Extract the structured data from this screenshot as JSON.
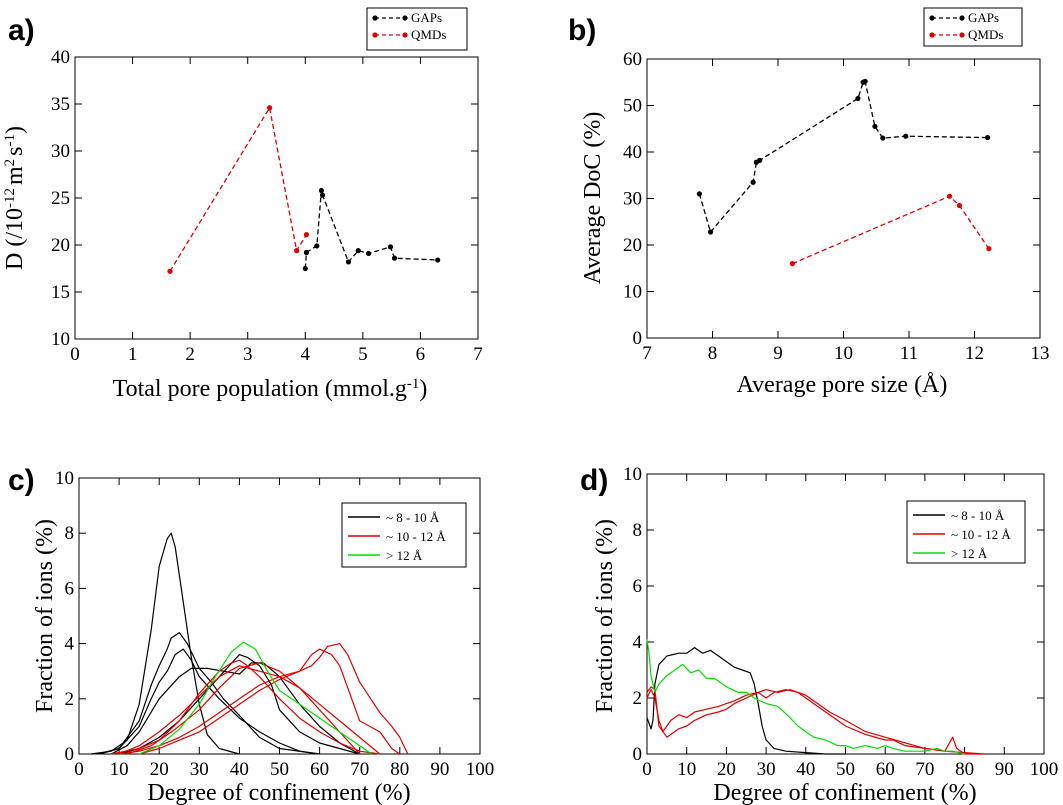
{
  "chart_data": [
    {
      "panel": "a)",
      "type": "line",
      "xlabel": "Total pore population (mmol.g",
      "xlabel_sup": "-1",
      "xlabel_end": ")",
      "ylabel_parts": [
        "D (/10",
        "-12",
        "m",
        "2",
        "s",
        "-1",
        ")"
      ],
      "xlim": [
        0,
        7
      ],
      "ylim": [
        10,
        40
      ],
      "xticks": [
        0,
        1,
        2,
        3,
        4,
        5,
        6,
        7
      ],
      "yticks": [
        10,
        15,
        20,
        25,
        30,
        35,
        40
      ],
      "legend_position": "top-right",
      "series": [
        {
          "name": "GAPs",
          "color": "#000000",
          "style": "dashed-markers",
          "x": [
            4.0,
            4.02,
            4.2,
            4.28,
            4.3,
            4.75,
            4.92,
            5.1,
            5.48,
            5.55,
            6.3
          ],
          "y": [
            17.5,
            19.2,
            19.9,
            25.8,
            25.3,
            18.2,
            19.4,
            19.1,
            19.8,
            18.6,
            18.4
          ]
        },
        {
          "name": "QMDs",
          "color": "#e00000",
          "style": "dashed-markers",
          "x": [
            1.65,
            3.38,
            3.85,
            4.02
          ],
          "y": [
            17.2,
            34.6,
            19.4,
            21.1
          ]
        }
      ]
    },
    {
      "panel": "b)",
      "type": "line",
      "xlabel": "Average pore size (Å)",
      "ylabel": "Average DoC (%)",
      "xlim": [
        7,
        13
      ],
      "ylim": [
        0,
        60
      ],
      "xticks": [
        7,
        8,
        9,
        10,
        11,
        12,
        13
      ],
      "yticks": [
        0,
        10,
        20,
        30,
        40,
        50,
        60
      ],
      "legend_position": "top-right",
      "series": [
        {
          "name": "GAPs",
          "color": "#000000",
          "style": "dashed-markers",
          "x": [
            7.8,
            7.97,
            8.62,
            8.67,
            8.72,
            10.22,
            10.3,
            10.33,
            10.48,
            10.6,
            10.95,
            12.2
          ],
          "y": [
            31.0,
            22.8,
            33.5,
            37.8,
            38.2,
            51.5,
            55.0,
            55.2,
            45.5,
            43.0,
            43.4,
            43.1
          ]
        },
        {
          "name": "QMDs",
          "color": "#e00000",
          "style": "dashed-markers",
          "x": [
            9.22,
            11.62,
            11.77,
            12.22
          ],
          "y": [
            16.0,
            30.5,
            28.5,
            19.2
          ]
        }
      ]
    },
    {
      "panel": "c)",
      "type": "line",
      "xlabel": "Degree of confinement (%)",
      "ylabel": "Fraction of ions (%)",
      "xlim": [
        0,
        100
      ],
      "ylim": [
        0,
        10
      ],
      "xticks": [
        0,
        10,
        20,
        30,
        40,
        50,
        60,
        70,
        80,
        90,
        100
      ],
      "yticks": [
        0,
        2,
        4,
        6,
        8,
        10
      ],
      "legend_position": "top-right",
      "legend": [
        {
          "label": "~ 8 - 10 Å",
          "color": "#000000"
        },
        {
          "label": "~ 10 - 12 Å",
          "color": "#e00000"
        },
        {
          "label": "> 12 Å",
          "color": "#00dd00"
        }
      ],
      "series": [
        {
          "group": 0,
          "color": "#000000",
          "x": [
            3,
            8,
            12,
            15,
            18,
            20,
            22,
            23,
            24,
            26,
            28,
            30,
            32,
            35,
            40
          ],
          "y": [
            0,
            0.1,
            0.5,
            1.8,
            4.5,
            6.8,
            7.8,
            8.0,
            7.5,
            5.5,
            3.5,
            1.8,
            0.7,
            0.2,
            0
          ]
        },
        {
          "group": 0,
          "color": "#000000",
          "x": [
            5,
            10,
            15,
            18,
            20,
            22,
            23,
            25,
            27,
            30,
            33,
            36,
            40,
            45,
            50,
            60
          ],
          "y": [
            0,
            0.2,
            1.2,
            2.5,
            3.2,
            3.8,
            4.2,
            4.4,
            4.0,
            3.1,
            2.6,
            2.0,
            1.4,
            0.6,
            0.2,
            0
          ]
        },
        {
          "group": 0,
          "color": "#000000",
          "x": [
            5,
            10,
            15,
            18,
            20,
            22,
            24,
            26,
            28,
            30,
            35,
            40,
            45,
            50,
            55,
            60
          ],
          "y": [
            0,
            0.2,
            1.0,
            2.0,
            2.6,
            3.0,
            3.6,
            3.8,
            3.4,
            2.8,
            2.0,
            1.3,
            0.8,
            0.4,
            0.1,
            0
          ]
        },
        {
          "group": 0,
          "color": "#000000",
          "x": [
            8,
            12,
            15,
            20,
            25,
            28,
            32,
            36,
            40,
            43,
            46,
            50,
            55,
            60,
            65,
            70
          ],
          "y": [
            0,
            0.3,
            0.8,
            2.0,
            2.8,
            3.1,
            3.1,
            3.0,
            2.9,
            3.3,
            3.3,
            2.8,
            1.8,
            1.0,
            0.4,
            0
          ]
        },
        {
          "group": 0,
          "color": "#000000",
          "x": [
            10,
            15,
            20,
            25,
            30,
            35,
            40,
            42,
            45,
            48,
            50,
            55,
            60,
            65,
            70
          ],
          "y": [
            0,
            0.2,
            0.6,
            1.2,
            2.0,
            2.8,
            3.6,
            3.5,
            3.2,
            2.5,
            1.6,
            0.8,
            0.4,
            0.2,
            0
          ]
        },
        {
          "group": 1,
          "color": "#e00000",
          "x": [
            8,
            15,
            20,
            25,
            30,
            35,
            38,
            40,
            42,
            45,
            50,
            55,
            60,
            65,
            70,
            75
          ],
          "y": [
            0,
            0.2,
            0.5,
            1.2,
            2.2,
            3.0,
            3.3,
            3.4,
            3.2,
            2.8,
            2.0,
            1.3,
            0.8,
            0.4,
            0.1,
            0
          ]
        },
        {
          "group": 1,
          "color": "#e00000",
          "x": [
            10,
            15,
            20,
            25,
            30,
            35,
            40,
            45,
            50,
            55,
            58,
            60,
            63,
            65,
            68,
            70,
            75,
            78,
            80
          ],
          "y": [
            0,
            0.1,
            0.3,
            0.6,
            1.0,
            1.5,
            2.0,
            2.5,
            2.8,
            3.0,
            3.6,
            3.8,
            3.6,
            3.2,
            2.0,
            1.2,
            0.8,
            0.2,
            0
          ]
        },
        {
          "group": 1,
          "color": "#e00000",
          "x": [
            15,
            20,
            25,
            30,
            35,
            40,
            45,
            50,
            55,
            58,
            60,
            62,
            65,
            67,
            70,
            75,
            78,
            80,
            82
          ],
          "y": [
            0,
            0.2,
            0.5,
            0.8,
            1.3,
            1.8,
            2.3,
            2.7,
            3.0,
            3.2,
            3.5,
            3.9,
            4.0,
            3.6,
            2.6,
            1.5,
            1.0,
            0.6,
            0
          ]
        },
        {
          "group": 1,
          "color": "#e00000",
          "x": [
            10,
            15,
            20,
            25,
            30,
            35,
            40,
            45,
            50,
            55,
            60,
            65,
            70,
            75
          ],
          "y": [
            0,
            0.3,
            0.8,
            1.4,
            2.1,
            2.8,
            3.2,
            3.0,
            2.8,
            2.4,
            1.8,
            1.2,
            0.6,
            0
          ]
        },
        {
          "group": 1,
          "color": "#e00000",
          "x": [
            12,
            18,
            24,
            30,
            35,
            40,
            45,
            50,
            55,
            60,
            65,
            70
          ],
          "y": [
            0,
            0.3,
            0.9,
            1.6,
            2.4,
            3.1,
            3.3,
            3.0,
            2.4,
            1.6,
            0.8,
            0
          ]
        },
        {
          "group": 2,
          "color": "#00dd00",
          "x": [
            15,
            20,
            25,
            30,
            34,
            38,
            41,
            44,
            47,
            50,
            55,
            60,
            65,
            70,
            73
          ],
          "y": [
            0,
            0.3,
            0.9,
            1.8,
            2.8,
            3.7,
            4.05,
            3.8,
            3.0,
            2.3,
            1.8,
            1.3,
            0.8,
            0.3,
            0
          ]
        }
      ]
    },
    {
      "panel": "d)",
      "type": "line",
      "xlabel": "Degree of confinement (%)",
      "ylabel": "Fraction of ions (%)",
      "xlim": [
        0,
        100
      ],
      "ylim": [
        0,
        10
      ],
      "xticks": [
        0,
        10,
        20,
        30,
        40,
        50,
        60,
        70,
        80,
        90,
        100
      ],
      "yticks": [
        0,
        2,
        4,
        6,
        8,
        10
      ],
      "legend_position": "top-right",
      "legend": [
        {
          "label": "~ 8 - 10 Å",
          "color": "#000000"
        },
        {
          "label": "~ 10 - 12 Å",
          "color": "#e00000"
        },
        {
          "label": "> 12 Å",
          "color": "#00dd00"
        }
      ],
      "series": [
        {
          "group": 0,
          "color": "#000000",
          "x": [
            0,
            0.5,
            1,
            1.5,
            2,
            3,
            5,
            8,
            10,
            12,
            14,
            16,
            18,
            20,
            22,
            24,
            26,
            27,
            28,
            29,
            30,
            32,
            35,
            40,
            45,
            50
          ],
          "y": [
            1.3,
            1.1,
            0.9,
            1.2,
            2.5,
            3.2,
            3.5,
            3.6,
            3.6,
            3.8,
            3.6,
            3.7,
            3.5,
            3.3,
            3.1,
            3.0,
            2.9,
            2.5,
            1.8,
            1.0,
            0.5,
            0.2,
            0.1,
            0.05,
            0,
            0
          ]
        },
        {
          "group": 1,
          "color": "#e00000",
          "x": [
            0,
            1,
            2,
            3,
            4,
            6,
            8,
            10,
            12,
            15,
            18,
            20,
            22,
            25,
            28,
            30,
            32,
            35,
            38,
            40,
            42,
            45,
            48,
            50,
            55,
            60,
            62,
            65,
            70,
            75,
            77,
            78,
            79,
            80,
            85
          ],
          "y": [
            2.0,
            2.3,
            2.0,
            1.2,
            0.8,
            1.2,
            1.4,
            1.3,
            1.5,
            1.6,
            1.7,
            1.8,
            1.9,
            2.1,
            2.2,
            2.0,
            2.2,
            2.3,
            2.2,
            2.0,
            1.8,
            1.5,
            1.2,
            1.0,
            0.7,
            0.5,
            0.5,
            0.3,
            0.2,
            0.1,
            0.6,
            0.2,
            0.1,
            0,
            0
          ]
        },
        {
          "group": 1,
          "color": "#e00000",
          "x": [
            0,
            1,
            2,
            3,
            5,
            8,
            10,
            12,
            15,
            18,
            20,
            22,
            25,
            28,
            30,
            33,
            36,
            40,
            43,
            46,
            50,
            55,
            60,
            65,
            70,
            75,
            80,
            85
          ],
          "y": [
            2.2,
            2.4,
            2.3,
            1.0,
            0.6,
            0.9,
            1.0,
            1.2,
            1.4,
            1.5,
            1.6,
            1.8,
            2.0,
            2.2,
            2.3,
            2.2,
            2.3,
            2.1,
            1.8,
            1.5,
            1.2,
            0.8,
            0.6,
            0.4,
            0.2,
            0.1,
            0.05,
            0
          ]
        },
        {
          "group": 2,
          "color": "#00dd00",
          "x": [
            0,
            0.5,
            1,
            2,
            3,
            5,
            7,
            9,
            11,
            13,
            15,
            17,
            20,
            23,
            25,
            27,
            30,
            33,
            36,
            38,
            40,
            42,
            45,
            48,
            50,
            52,
            55,
            58,
            60,
            62,
            65,
            70,
            73,
            75,
            77,
            80
          ],
          "y": [
            4.1,
            3.6,
            2.8,
            2.2,
            2.5,
            2.8,
            3.0,
            3.2,
            2.9,
            3.0,
            2.7,
            2.7,
            2.4,
            2.2,
            2.2,
            2.0,
            1.8,
            1.7,
            1.3,
            1.0,
            0.8,
            0.6,
            0.5,
            0.3,
            0.3,
            0.2,
            0.3,
            0.2,
            0.3,
            0.2,
            0.1,
            0.1,
            0.2,
            0.1,
            0.1,
            0
          ]
        }
      ]
    }
  ]
}
